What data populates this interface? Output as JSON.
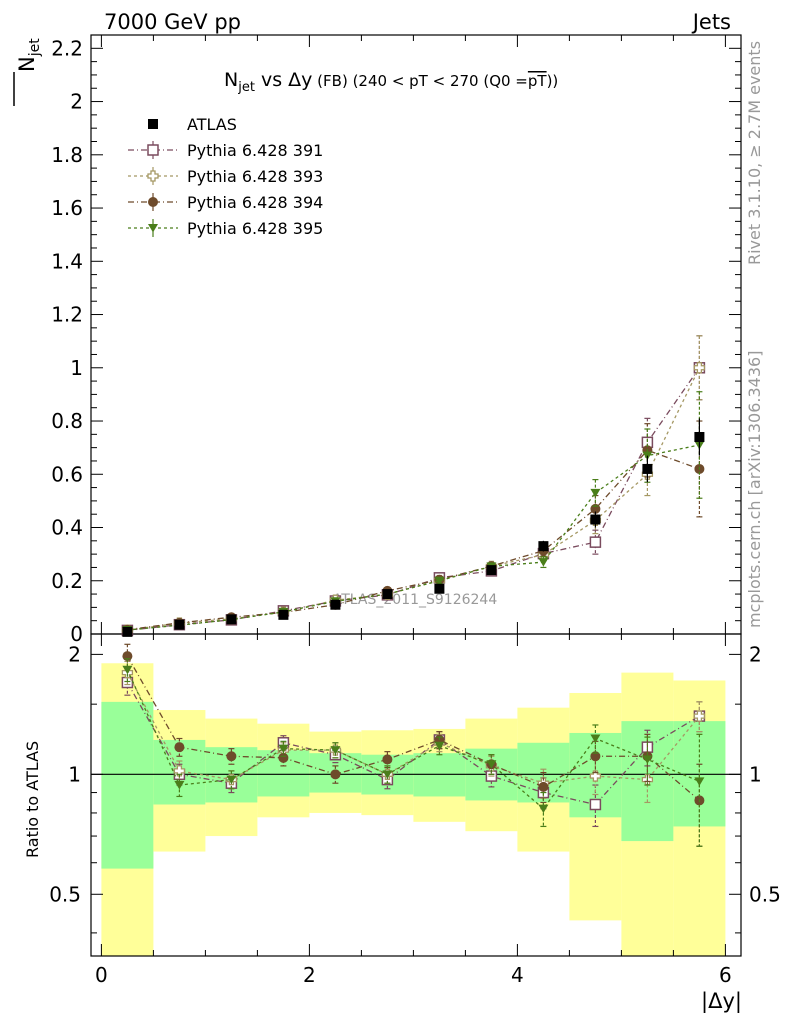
{
  "header": {
    "energy_label": "7000 GeV pp",
    "process_label": "Jets",
    "side_label_top": "Rivet 3.1.10, ≥ 2.7M events",
    "side_label_bottom": "mcplots.cern.ch [arXiv:1306.3436]",
    "watermark": "ATLAS_2011_S9126244"
  },
  "title": {
    "main": "N",
    "main_sub": "jet",
    "vs": " vs Δy",
    "fb": " (FB)",
    "cuts": " (240 < pT < 270 (Q0 =",
    "pt_bar": "pT",
    "close": "))"
  },
  "ylabel": {
    "main": "N",
    "sub": "jet"
  },
  "ratio_ylabel": "Ratio to ATLAS",
  "xlabel": "|Δy|",
  "chart_data": {
    "type": "scatter",
    "x": [
      0.25,
      0.75,
      1.25,
      1.75,
      2.25,
      2.75,
      3.25,
      3.75,
      4.25,
      4.75,
      5.25,
      5.75
    ],
    "x_edges": [
      0,
      0.5,
      1.0,
      1.5,
      2.0,
      2.5,
      3.0,
      3.5,
      4.0,
      4.5,
      5.0,
      5.5,
      6.0
    ],
    "xlim": [
      -0.1,
      6.15
    ],
    "ylim": [
      0,
      2.25
    ],
    "ratio_ylim": [
      0.35,
      2.25
    ],
    "ratio_log": true,
    "xticks": [
      0,
      2,
      4,
      6
    ],
    "yticks": [
      0,
      0.2,
      0.4,
      0.6,
      0.8,
      1,
      1.2,
      1.4,
      1.6,
      1.8,
      2,
      2.2
    ],
    "ratio_yticks": [
      0.5,
      1,
      2
    ],
    "legend_position": "top-left",
    "data": {
      "name": "ATLAS",
      "values": [
        0.008,
        0.035,
        0.055,
        0.072,
        0.11,
        0.15,
        0.17,
        0.24,
        0.33,
        0.43,
        0.62,
        0.74
      ],
      "errors": [
        0.002,
        0.004,
        0.005,
        0.006,
        0.008,
        0.01,
        0.012,
        0.015,
        0.02,
        0.03,
        0.05,
        0.07
      ]
    },
    "band_inner": [
      [
        0.58,
        1.52
      ],
      [
        0.84,
        1.22
      ],
      [
        0.85,
        1.17
      ],
      [
        0.88,
        1.15
      ],
      [
        0.9,
        1.13
      ],
      [
        0.89,
        1.12
      ],
      [
        0.88,
        1.13
      ],
      [
        0.86,
        1.16
      ],
      [
        0.85,
        1.2
      ],
      [
        0.78,
        1.27
      ],
      [
        0.68,
        1.36
      ],
      [
        0.74,
        1.36
      ]
    ],
    "band_outer": [
      [
        0.35,
        1.9
      ],
      [
        0.64,
        1.45
      ],
      [
        0.7,
        1.38
      ],
      [
        0.78,
        1.34
      ],
      [
        0.8,
        1.28
      ],
      [
        0.79,
        1.29
      ],
      [
        0.76,
        1.3
      ],
      [
        0.72,
        1.38
      ],
      [
        0.64,
        1.47
      ],
      [
        0.43,
        1.6
      ],
      [
        0.35,
        1.8
      ],
      [
        0.35,
        1.72
      ]
    ],
    "series": [
      {
        "name": "Pythia 6.428 391",
        "color": "#7a4b5e",
        "marker": "open-square",
        "dash": "6,3,1,3",
        "values": [
          0.0135,
          0.035,
          0.053,
          0.087,
          0.124,
          0.147,
          0.211,
          0.237,
          0.302,
          0.345,
          0.72,
          1.0
        ],
        "errors": [
          0.002,
          0.003,
          0.004,
          0.005,
          0.006,
          0.008,
          0.01,
          0.012,
          0.02,
          0.045,
          0.09,
          0.12
        ],
        "ratio": [
          1.7,
          1.0,
          0.95,
          1.2,
          1.12,
          0.97,
          1.22,
          0.99,
          0.9,
          0.84,
          1.17,
          1.4
        ],
        "ratio_err": [
          0.12,
          0.06,
          0.05,
          0.05,
          0.05,
          0.05,
          0.06,
          0.06,
          0.08,
          0.1,
          0.12,
          0.12
        ]
      },
      {
        "name": "Pythia 6.428 393",
        "color": "#a59863",
        "marker": "open-cross",
        "dash": "3,3",
        "values": [
          0.0145,
          0.041,
          0.057,
          0.082,
          0.127,
          0.149,
          0.201,
          0.254,
          0.298,
          0.427,
          0.6,
          1.0
        ],
        "errors": [
          0.002,
          0.003,
          0.004,
          0.005,
          0.006,
          0.008,
          0.01,
          0.012,
          0.02,
          0.05,
          0.08,
          0.12
        ],
        "ratio": [
          1.8,
          1.02,
          0.97,
          1.15,
          1.15,
          1.0,
          1.2,
          1.05,
          0.95,
          0.99,
          0.97,
          1.4
        ],
        "ratio_err": [
          0.12,
          0.06,
          0.05,
          0.05,
          0.05,
          0.05,
          0.06,
          0.06,
          0.08,
          0.1,
          0.12,
          0.12
        ]
      },
      {
        "name": "Pythia 6.428 394",
        "color": "#6e4b2b",
        "marker": "filled-circle",
        "dash": "6,3,1,3",
        "values": [
          0.016,
          0.042,
          0.063,
          0.081,
          0.11,
          0.162,
          0.204,
          0.255,
          0.313,
          0.47,
          0.69,
          0.62
        ],
        "errors": [
          0.002,
          0.003,
          0.004,
          0.005,
          0.006,
          0.008,
          0.01,
          0.012,
          0.02,
          0.05,
          0.1,
          0.18
        ],
        "ratio": [
          1.98,
          1.17,
          1.11,
          1.1,
          1.0,
          1.09,
          1.22,
          1.06,
          0.93,
          1.11,
          1.11,
          0.86
        ],
        "ratio_err": [
          0.14,
          0.06,
          0.05,
          0.05,
          0.05,
          0.05,
          0.06,
          0.06,
          0.08,
          0.1,
          0.15,
          0.2
        ]
      },
      {
        "name": "Pythia 6.428 395",
        "color": "#4a7e1a",
        "marker": "filled-triangle-down",
        "dash": "3,3",
        "values": [
          0.0148,
          0.033,
          0.054,
          0.083,
          0.123,
          0.15,
          0.2,
          0.254,
          0.27,
          0.53,
          0.67,
          0.71
        ],
        "errors": [
          0.002,
          0.003,
          0.004,
          0.005,
          0.006,
          0.008,
          0.01,
          0.012,
          0.02,
          0.05,
          0.1,
          0.2
        ],
        "ratio": [
          1.83,
          0.94,
          0.97,
          1.16,
          1.15,
          1.0,
          1.18,
          1.06,
          0.82,
          1.23,
          1.09,
          0.96
        ],
        "ratio_err": [
          0.12,
          0.06,
          0.05,
          0.05,
          0.05,
          0.05,
          0.06,
          0.06,
          0.08,
          0.1,
          0.15,
          0.3
        ]
      }
    ]
  }
}
